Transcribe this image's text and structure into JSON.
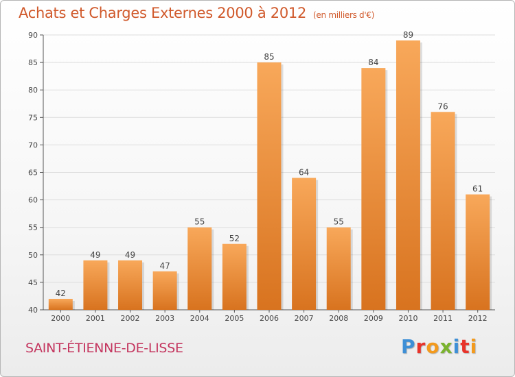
{
  "header": {
    "title": "Achats et Charges Externes 2000 à 2012",
    "unit": "(en milliers d'€)"
  },
  "footer": {
    "place": "SAINT-ÉTIENNE-DE-LISSE",
    "logo": "Proxiti",
    "logo_colors": [
      "#3d8fd6",
      "#e8332a",
      "#f39a1d",
      "#7ab32e",
      "#3d8fd6",
      "#e8332a",
      "#f39a1d"
    ]
  },
  "colors": {
    "bar_light": "#f8a85a",
    "bar_dark": "#d8731f",
    "title": "#d0592b",
    "place": "#c4365f",
    "grid": "#dddddd",
    "axis": "#555555"
  },
  "chart_data": {
    "type": "bar",
    "title": "Achats et Charges Externes 2000 à 2012",
    "subtitle": "(en milliers d'€)",
    "categories": [
      "2000",
      "2001",
      "2002",
      "2003",
      "2004",
      "2005",
      "2006",
      "2007",
      "2008",
      "2009",
      "2010",
      "2011",
      "2012"
    ],
    "values": [
      42,
      49,
      49,
      47,
      55,
      52,
      85,
      64,
      55,
      84,
      89,
      76,
      61
    ],
    "ylim": [
      40,
      90
    ],
    "yticks": [
      40,
      45,
      50,
      55,
      60,
      65,
      70,
      75,
      80,
      85,
      90
    ],
    "grid": true,
    "data_labels": true
  }
}
